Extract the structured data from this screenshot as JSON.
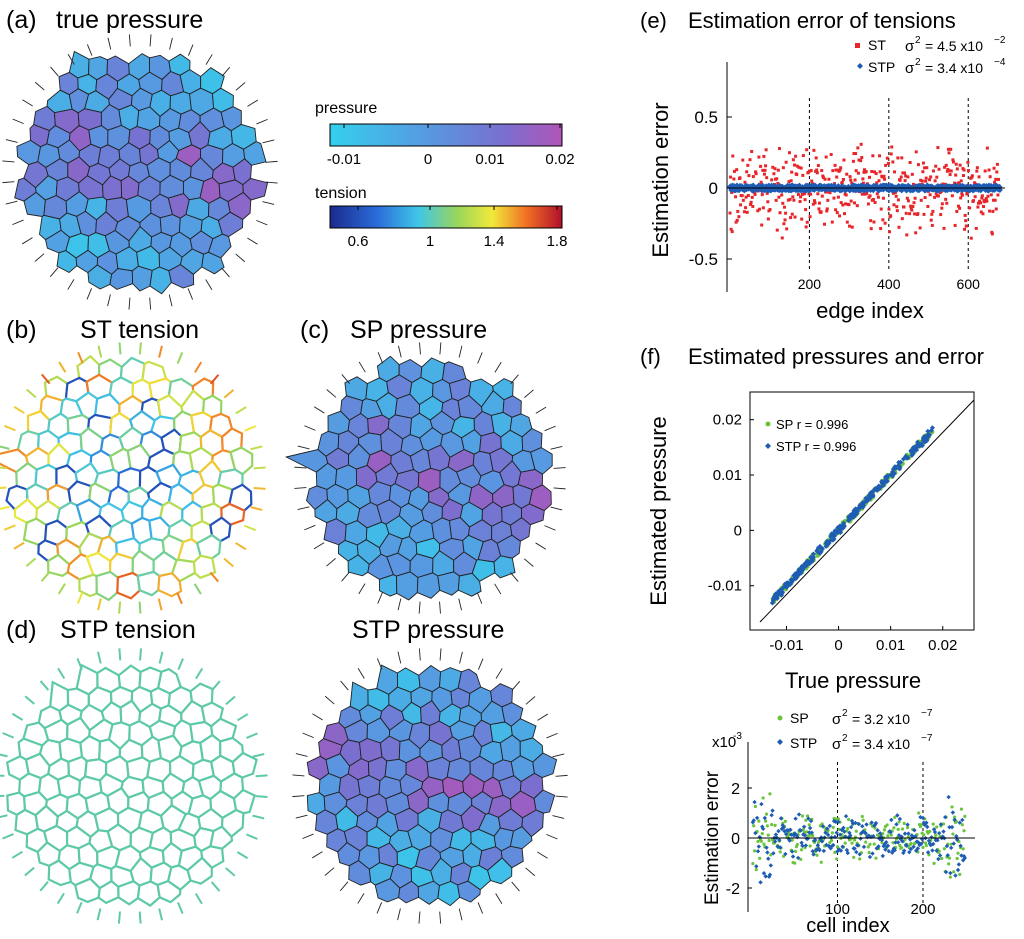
{
  "panels": {
    "a": {
      "letter": "(a)",
      "title": "true pressure"
    },
    "b": {
      "letter": "(b)",
      "title": "ST tension"
    },
    "c": {
      "letter": "(c)",
      "title": "SP pressure"
    },
    "d": {
      "letter": "(d)",
      "title": "STP tension"
    },
    "d2": {
      "title": "STP pressure"
    },
    "e": {
      "letter": "(e)",
      "title": "Estimation error of tensions"
    },
    "f": {
      "letter": "(f)",
      "title": "Estimated pressures and error"
    }
  },
  "colorbars": {
    "pressure": {
      "label": "pressure",
      "ticks": [
        "-0.01",
        "0",
        "0.01",
        "0.02"
      ]
    },
    "tension": {
      "label": "tension",
      "ticks": [
        "0.6",
        "1",
        "1.4",
        "1.8"
      ]
    }
  },
  "colors": {
    "pressure_low": "#3cc8e8",
    "pressure_mid": "#6a7fd6",
    "pressure_high": "#a25ab8",
    "edge_outline": "#222222",
    "st_red": "#e8262a",
    "stp_blue": "#1f5db5",
    "sp_green": "#6ac43c",
    "stp_tension": "#5ec9a8"
  },
  "chart_data": [
    {
      "id": "e",
      "type": "scatter",
      "title": "Estimation error of tensions",
      "xlabel": "edge index",
      "ylabel": "Estimation error",
      "xlim": [
        0,
        680
      ],
      "ylim": [
        -0.7,
        0.85
      ],
      "xticks": [
        "200",
        "400",
        "600"
      ],
      "yticks": [
        "0.5",
        "0",
        "-0.5"
      ],
      "vlines": [
        200,
        400,
        600
      ],
      "legend": [
        {
          "name": "ST",
          "stat": "σ² = 4.5 x10⁻²",
          "sigma": "σ",
          "exp": "2",
          "eq": "= 4.5 x10",
          "pow": "−2"
        },
        {
          "name": "STP",
          "stat": "σ² = 3.4 x10⁻⁴",
          "sigma": "σ",
          "exp": "2",
          "eq": "= 3.4 x10",
          "pow": "−4"
        }
      ],
      "series": [
        {
          "name": "ST",
          "color": "#e8262a",
          "spread": 0.2
        },
        {
          "name": "STP",
          "color": "#1f5db5",
          "spread": 0.018
        }
      ]
    },
    {
      "id": "f_top",
      "type": "scatter",
      "xlabel": "True pressure",
      "ylabel": "Estimated pressure",
      "xlim": [
        -0.017,
        0.026
      ],
      "ylim": [
        -0.018,
        0.025
      ],
      "xticks": [
        "-0.01",
        "0",
        "0.01",
        "0.02"
      ],
      "yticks": [
        "0.02",
        "0.01",
        "0",
        "-0.01"
      ],
      "legend": [
        {
          "name": "SP",
          "stat": "SP  r = 0.996"
        },
        {
          "name": "STP",
          "stat": "STP r = 0.996"
        }
      ],
      "series": [
        {
          "name": "SP",
          "color": "#6ac43c",
          "r": 0.996
        },
        {
          "name": "STP",
          "color": "#1f5db5",
          "r": 0.996
        }
      ]
    },
    {
      "id": "f_bottom",
      "type": "scatter",
      "xlabel": "cell index",
      "ylabel": "Estimation error",
      "scale_label": "x10",
      "scale_exp": "-3",
      "xlim": [
        0,
        255
      ],
      "ylim": [
        -3,
        3.2
      ],
      "xticks": [
        "100",
        "200"
      ],
      "yticks": [
        "2",
        "0",
        "-2"
      ],
      "vlines": [
        100,
        200
      ],
      "legend": [
        {
          "name": "SP",
          "sigma": "σ",
          "exp": "2",
          "eq": "= 3.2 x10",
          "pow": "−7"
        },
        {
          "name": "STP",
          "sigma": "σ",
          "exp": "2",
          "eq": "= 3.4 x10",
          "pow": "−7"
        }
      ],
      "series": [
        {
          "name": "SP",
          "color": "#6ac43c"
        },
        {
          "name": "STP",
          "color": "#1f5db5"
        }
      ]
    }
  ]
}
